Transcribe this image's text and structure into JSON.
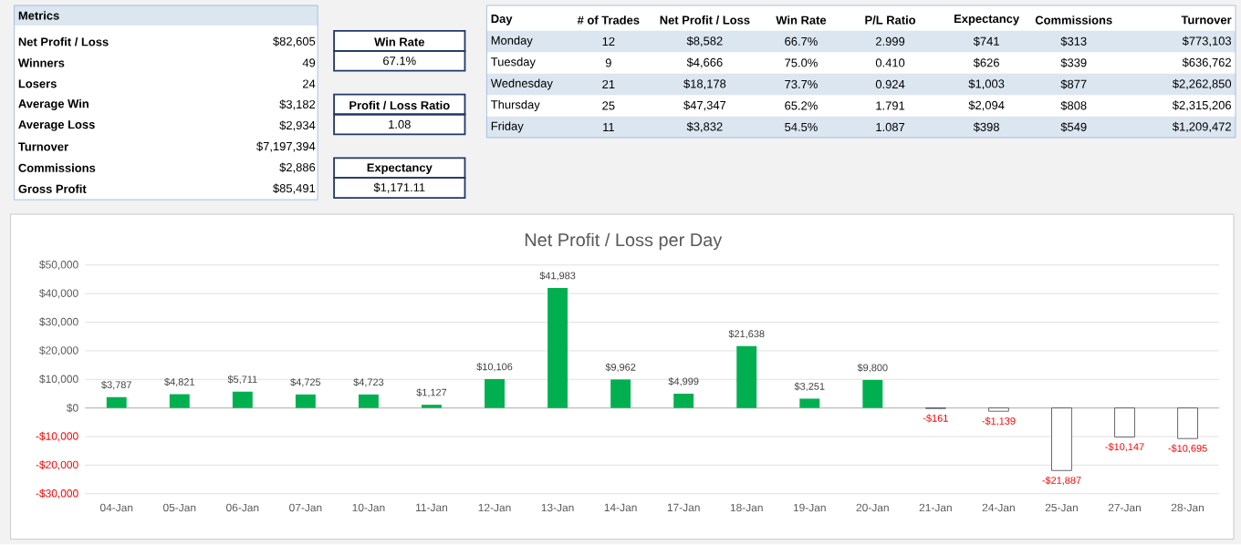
{
  "chart_data": [
    {
      "type": "other",
      "title": "Metrics",
      "annotations": [
        "Net Profit / Loss",
        "$82,605",
        "Winners",
        "49",
        "Losers",
        "24",
        "Average Win",
        "$3,182",
        "Average Loss",
        "$2,934",
        "Turnover",
        "$7,197,394",
        "Commissions",
        "$2,886",
        "Gross Profit",
        "$85,491",
        "Win Rate",
        "67.1%",
        "Profit / Loss Ratio",
        "1.08",
        "Expectancy",
        "$1,171.11"
      ]
    },
    {
      "type": "other",
      "annotations": [
        "Day",
        "# of Trades",
        "Net Profit / Loss",
        "Win Rate",
        "P/L Ratio",
        "Expectancy",
        "Commissions",
        "Turnover",
        "Monday",
        "12",
        "$8,582",
        "66.7%",
        "2.999",
        "$741",
        "$313",
        "$773,103",
        "Tuesday",
        "9",
        "$4,666",
        "75.0%",
        "0.410",
        "$626",
        "$339",
        "$636,762",
        "Wednesday",
        "21",
        "$18,178",
        "73.7%",
        "0.924",
        "$1,003",
        "$877",
        "$2,262,850",
        "Thursday",
        "25",
        "$47,347",
        "65.2%",
        "1.791",
        "$2,094",
        "$808",
        "$2,315,206",
        "Friday",
        "11",
        "$3,832",
        "54.5%",
        "1.087",
        "$398",
        "$549",
        "$1,209,472"
      ]
    },
    {
      "type": "bar",
      "title": "Net Profit / Loss per Day",
      "categories": [
        "04-Jan",
        "05-Jan",
        "06-Jan",
        "07-Jan",
        "10-Jan",
        "11-Jan",
        "12-Jan",
        "13-Jan",
        "14-Jan",
        "17-Jan",
        "18-Jan",
        "19-Jan",
        "20-Jan",
        "21-Jan",
        "24-Jan",
        "25-Jan",
        "27-Jan",
        "28-Jan"
      ],
      "values": [
        3787,
        4821,
        5711,
        4725,
        4723,
        1127,
        10106,
        41983,
        9962,
        4999,
        21638,
        3251,
        9800,
        -161,
        -1139,
        -21887,
        -10147,
        -10695
      ],
      "value_labels": [
        "$3,787",
        "$4,821",
        "$5,711",
        "$4,725",
        "$4,723",
        "$1,127",
        "$10,106",
        "$41,983",
        "$9,962",
        "$4,999",
        "$21,638",
        "$3,251",
        "$9,800",
        "-$161",
        "-$1,139",
        "-$21,887",
        "-$10,147",
        "-$10,695"
      ],
      "colors": [
        "#00b050",
        "#00b050",
        "#00b050",
        "#00b050",
        "#00b050",
        "#00b050",
        "#00b050",
        "#00b050",
        "#00b050",
        "#00b050",
        "#00b050",
        "#00b050",
        "#00b050",
        "#ffffff",
        "#ffffff",
        "#ffffff",
        "#ffffff",
        "#ffffff"
      ],
      "ylim": [
        -30000,
        50000
      ],
      "yticks": [
        {
          "value": -30000,
          "label": "-$30,000"
        },
        {
          "value": -20000,
          "label": "-$20,000"
        },
        {
          "value": -10000,
          "label": "-$10,000"
        },
        {
          "value": 0,
          "label": "$0"
        },
        {
          "value": 10000,
          "label": "$10,000"
        },
        {
          "value": 20000,
          "label": "$20,000"
        },
        {
          "value": 30000,
          "label": "$30,000"
        },
        {
          "value": 40000,
          "label": "$40,000"
        },
        {
          "value": 50000,
          "label": "$50,000"
        }
      ],
      "grid": "y"
    }
  ]
}
